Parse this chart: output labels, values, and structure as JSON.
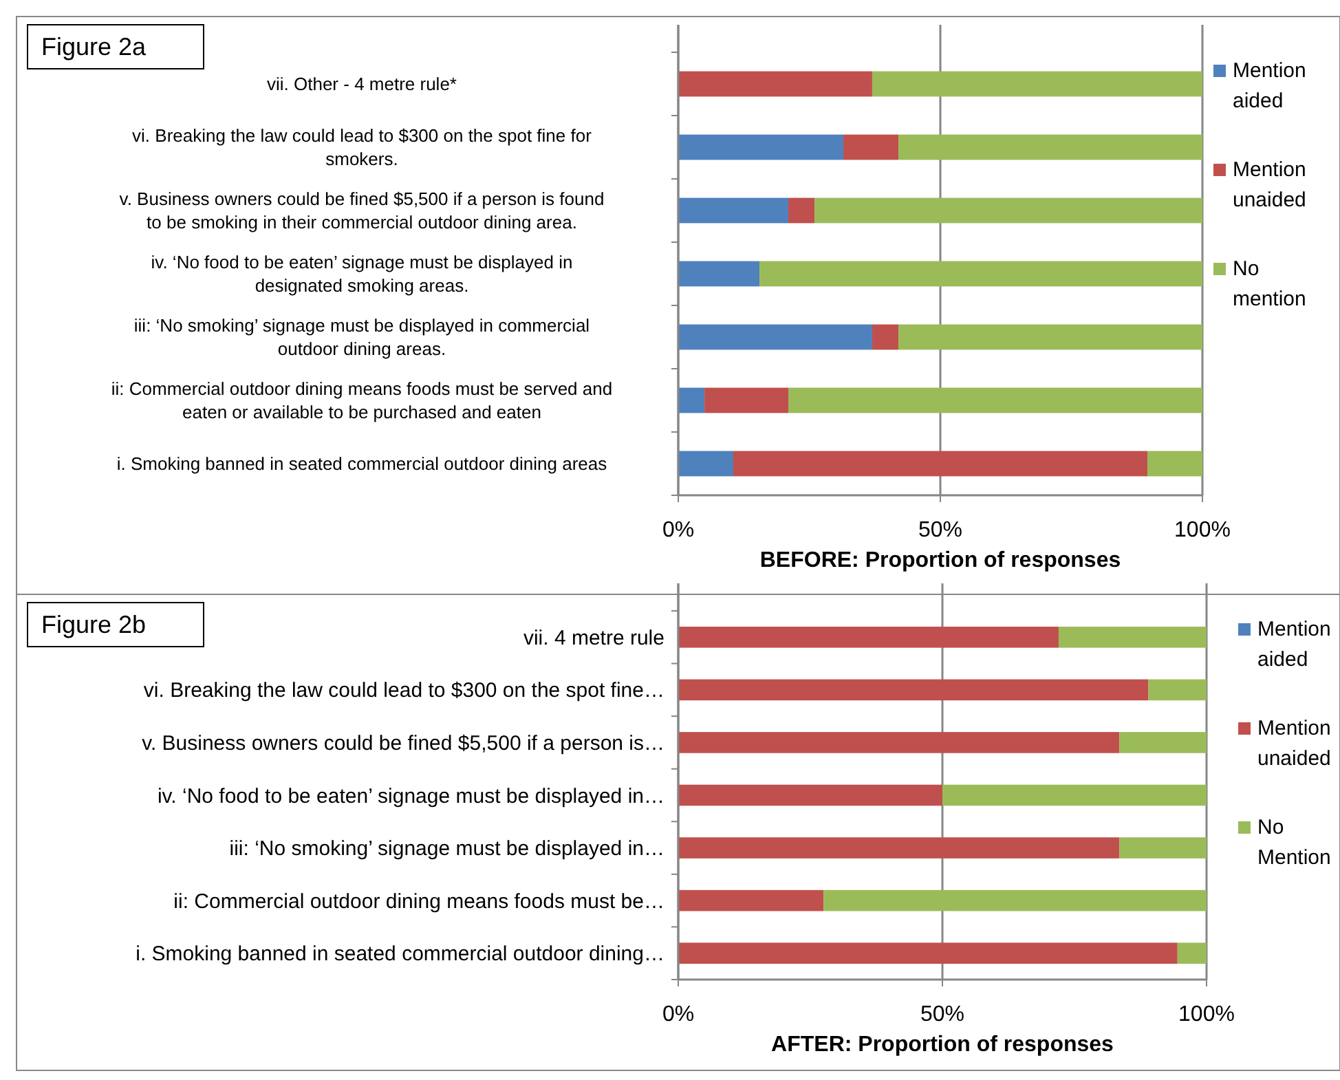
{
  "chart_data": [
    {
      "type": "bar",
      "orientation": "horizontal",
      "stacked": true,
      "title": "Figure 2a",
      "xlabel": "BEFORE: Proportion of responses",
      "categories": [
        "vii. Other - 4 metre rule*",
        "vi. Breaking the law could lead to $300 on the spot fine for smokers.",
        "v. Business owners could be fined $5,500 if a person is found to be smoking in their commercial outdoor dining area.",
        "iv. ‘No food to be eaten’ signage must be displayed in designated smoking areas.",
        "iii: ‘No smoking’ signage must be displayed in commercial outdoor dining areas.",
        "ii: Commercial outdoor dining means foods must be served and eaten or available to be purchased and eaten",
        "i. Smoking banned in seated commercial outdoor dining areas"
      ],
      "series": [
        {
          "name": "Mention aided",
          "color": "#4f81bd",
          "values": [
            0,
            31.5,
            21,
            15.5,
            37,
            5,
            10.5
          ]
        },
        {
          "name": "Mention unaided",
          "color": "#c0504d",
          "values": [
            37,
            10.5,
            5,
            0,
            5,
            16,
            79
          ]
        },
        {
          "name": "No mention",
          "color": "#9bbb59",
          "values": [
            63,
            58,
            74,
            84.5,
            58,
            79,
            10.5
          ]
        }
      ],
      "xlim": [
        0,
        100
      ],
      "xticks": [
        {
          "value": 0,
          "label": "0%"
        },
        {
          "value": 50,
          "label": "50%"
        },
        {
          "value": 100,
          "label": "100%"
        }
      ],
      "grid": "x",
      "legend": "right"
    },
    {
      "type": "bar",
      "orientation": "horizontal",
      "stacked": true,
      "title": "Figure 2b",
      "xlabel": "AFTER: Proportion of responses",
      "categories": [
        "vii. 4 metre rule",
        "vi. Breaking the law could lead to $300 on the spot fine…",
        "v. Business owners could be fined $5,500 if a person is…",
        "iv. ‘No food to be eaten’ signage must be displayed in…",
        "iii: ‘No smoking’ signage must be displayed in…",
        "ii: Commercial outdoor dining means foods must be…",
        "i. Smoking banned in seated commercial outdoor dining…"
      ],
      "series": [
        {
          "name": "Mention aided",
          "color": "#4f81bd",
          "values": [
            0,
            0,
            0,
            0,
            0,
            0,
            0
          ]
        },
        {
          "name": "Mention unaided",
          "color": "#c0504d",
          "values": [
            72,
            89,
            83.5,
            50,
            83.5,
            27.5,
            94.5
          ]
        },
        {
          "name": "No Mention",
          "color": "#9bbb59",
          "values": [
            28,
            11,
            16.5,
            50,
            16.5,
            72.5,
            5.5
          ]
        }
      ],
      "xlim": [
        0,
        100
      ],
      "xticks": [
        {
          "value": 0,
          "label": "0%"
        },
        {
          "value": 50,
          "label": "50%"
        },
        {
          "value": 100,
          "label": "100%"
        }
      ],
      "grid": "x",
      "legend": "right"
    }
  ]
}
